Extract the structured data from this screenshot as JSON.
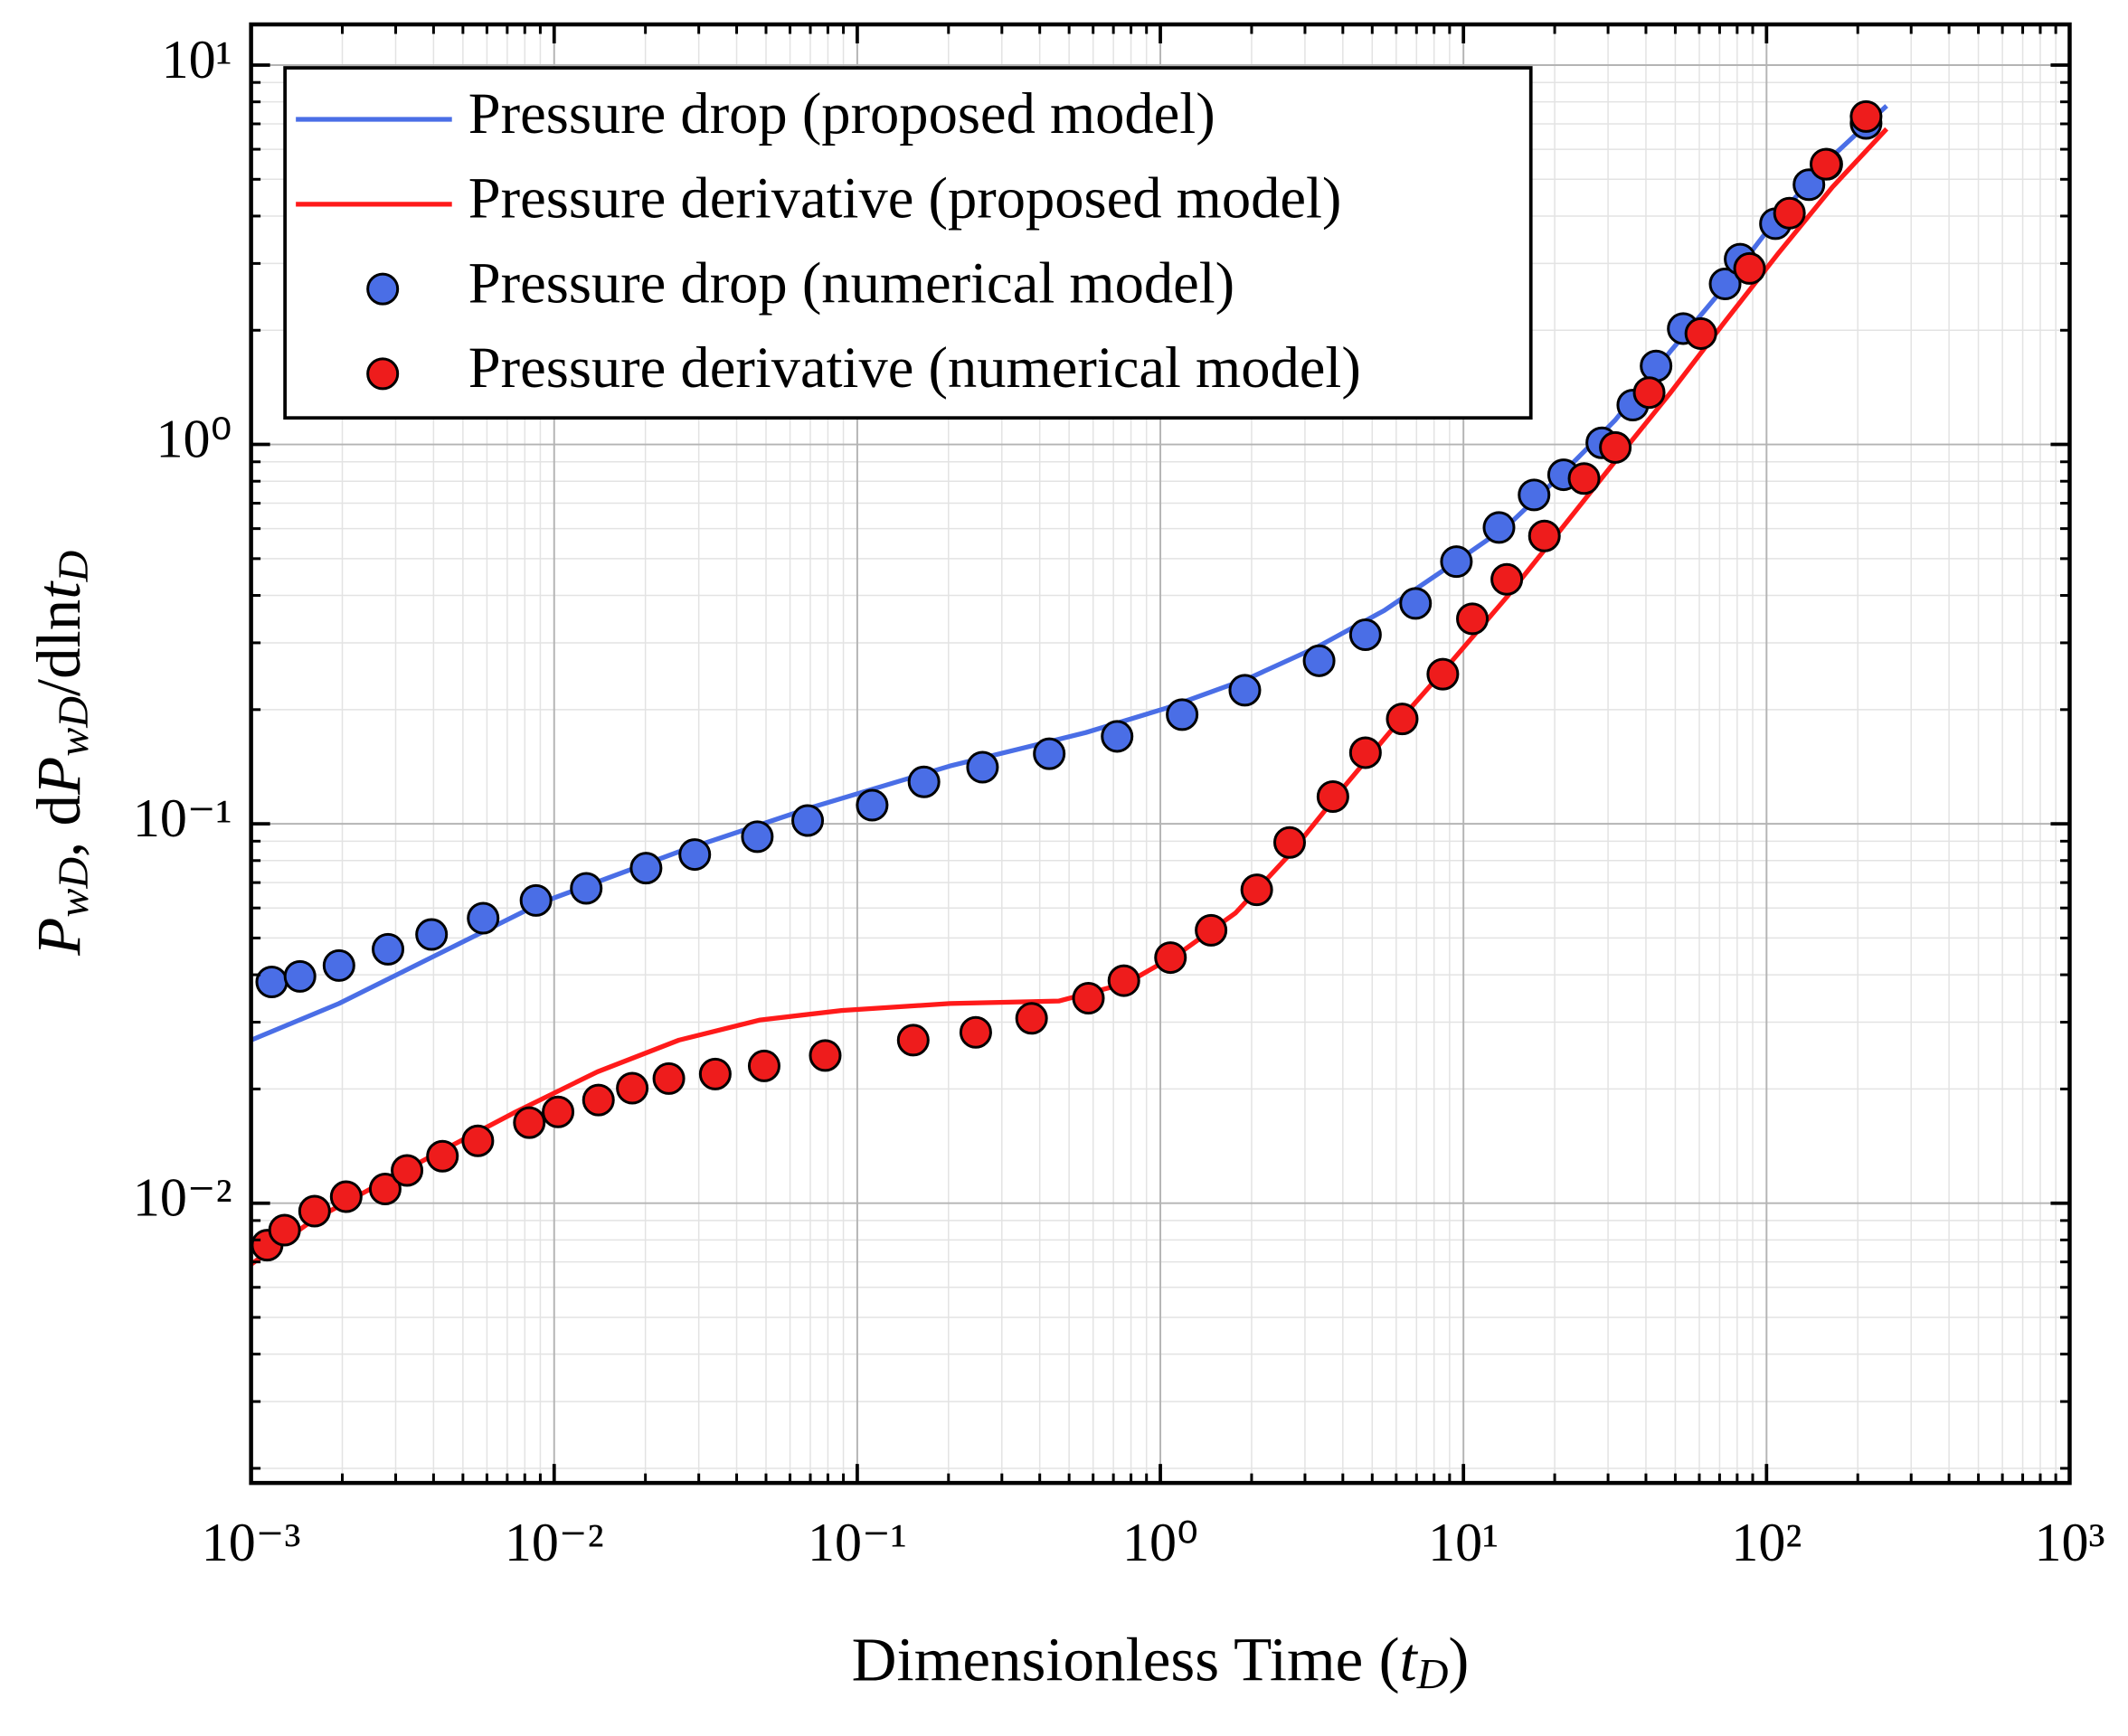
{
  "chart_data": {
    "type": "scatter",
    "xlabel": [
      [
        "Dimensionless Time (",
        ""
      ],
      [
        "t",
        "i"
      ],
      [
        "D",
        "sub"
      ],
      [
        ")",
        ""
      ]
    ],
    "ylabel": [
      [
        "P",
        "i"
      ],
      [
        "wD",
        "sub"
      ],
      [
        ", d",
        ""
      ],
      [
        "P",
        "i"
      ],
      [
        "wD",
        "sub"
      ],
      [
        "/dln",
        ""
      ],
      [
        "t",
        "i"
      ],
      [
        "D",
        "sub"
      ]
    ],
    "xscale": "log",
    "yscale": "log",
    "grid": true,
    "minor_grid": true,
    "legend": "upper left",
    "xlim": [
      0.001,
      1000
    ],
    "ylim": [
      0.00183,
      12.8
    ],
    "xticks": [
      {
        "value": 0.001,
        "label": "10⁻³"
      },
      {
        "value": 0.01,
        "label": "10⁻²"
      },
      {
        "value": 0.1,
        "label": "10⁻¹"
      },
      {
        "value": 1,
        "label": "10⁰"
      },
      {
        "value": 10,
        "label": "10¹"
      },
      {
        "value": 100,
        "label": "10²"
      },
      {
        "value": 1000,
        "label": "10³"
      }
    ],
    "yticks": [
      {
        "value": 0.01,
        "label": "10⁻²"
      },
      {
        "value": 0.1,
        "label": "10⁻¹"
      },
      {
        "value": 1,
        "label": "10⁰"
      },
      {
        "value": 10,
        "label": "10¹"
      }
    ],
    "series": [
      {
        "name": "Pressure drop (proposed model)",
        "kind": "line",
        "color": "#4a6ee6",
        "x": [
          0.001,
          0.00195,
          0.00402,
          0.00918,
          0.0258,
          0.0721,
          0.202,
          0.568,
          1.05,
          1.96,
          3.28,
          5.48,
          9.18,
          13.9,
          21.0,
          31.7,
          47.9,
          72.3,
          109,
          165,
          249
        ],
        "values": [
          0.0269,
          0.0336,
          0.0448,
          0.0622,
          0.0844,
          0.111,
          0.142,
          0.174,
          0.202,
          0.242,
          0.292,
          0.365,
          0.483,
          0.608,
          0.832,
          1.16,
          1.75,
          2.59,
          3.98,
          5.75,
          7.81
        ]
      },
      {
        "name": "Pressure derivative (proposed model)",
        "kind": "line",
        "color": "#ff1a1a",
        "x": [
          0.001,
          0.00159,
          0.00327,
          0.00747,
          0.0139,
          0.0258,
          0.0478,
          0.0887,
          0.202,
          0.462,
          0.773,
          1.17,
          1.77,
          2.67,
          4.03,
          6.08,
          9.18,
          13.9,
          21.0,
          31.7,
          47.9,
          72.3,
          109,
          165,
          249
        ],
        "values": [
          0.0069,
          0.00899,
          0.0123,
          0.0174,
          0.0222,
          0.0269,
          0.0304,
          0.0322,
          0.0336,
          0.0341,
          0.038,
          0.0459,
          0.0582,
          0.083,
          0.125,
          0.185,
          0.269,
          0.396,
          0.598,
          0.904,
          1.36,
          2.09,
          3.18,
          4.77,
          6.79
        ]
      },
      {
        "name": "Pressure drop (numerical model)",
        "kind": "marker",
        "color": "#4a6ee6",
        "x": [
          0.00117,
          0.00145,
          0.00195,
          0.00283,
          0.00394,
          0.00583,
          0.00871,
          0.01276,
          0.0201,
          0.0291,
          0.0468,
          0.0686,
          0.112,
          0.166,
          0.259,
          0.43,
          0.72,
          1.18,
          1.9,
          3.34,
          4.75,
          6.95,
          9.48,
          13.1,
          17.1,
          21.4,
          28.6,
          36.2,
          43.2,
          53.1,
          73.0,
          81.8,
          107,
          138,
          158,
          213
        ],
        "values": [
          0.0383,
          0.0396,
          0.0423,
          0.0467,
          0.0511,
          0.0564,
          0.0628,
          0.0676,
          0.0764,
          0.083,
          0.0925,
          0.102,
          0.112,
          0.129,
          0.141,
          0.153,
          0.17,
          0.194,
          0.225,
          0.269,
          0.315,
          0.381,
          0.491,
          0.604,
          0.736,
          0.832,
          1.01,
          1.27,
          1.61,
          2.02,
          2.65,
          3.08,
          3.82,
          4.84,
          5.48,
          7.02
        ]
      },
      {
        "name": "Pressure derivative (numerical model)",
        "kind": "marker",
        "color": "#ee1c1c",
        "x": [
          0.00113,
          0.00129,
          0.00162,
          0.00206,
          0.00277,
          0.00327,
          0.00428,
          0.0056,
          0.00828,
          0.0103,
          0.014,
          0.0181,
          0.0239,
          0.034,
          0.0493,
          0.0784,
          0.153,
          0.246,
          0.376,
          0.579,
          0.758,
          1.08,
          1.47,
          2.08,
          2.67,
          3.71,
          4.75,
          6.28,
          8.55,
          10.7,
          13.9,
          18.5,
          25.0,
          31.7,
          41.0,
          60.7,
          87.9,
          119,
          157,
          213
        ],
        "values": [
          0.00775,
          0.00849,
          0.00953,
          0.0104,
          0.0109,
          0.0122,
          0.0133,
          0.0146,
          0.0163,
          0.0174,
          0.0187,
          0.0201,
          0.0213,
          0.0219,
          0.023,
          0.0245,
          0.0269,
          0.0282,
          0.0307,
          0.0347,
          0.0386,
          0.0444,
          0.0524,
          0.067,
          0.0893,
          0.118,
          0.154,
          0.189,
          0.248,
          0.347,
          0.441,
          0.574,
          0.813,
          0.982,
          1.37,
          1.96,
          2.91,
          4.07,
          5.48,
          7.32
        ]
      }
    ]
  }
}
